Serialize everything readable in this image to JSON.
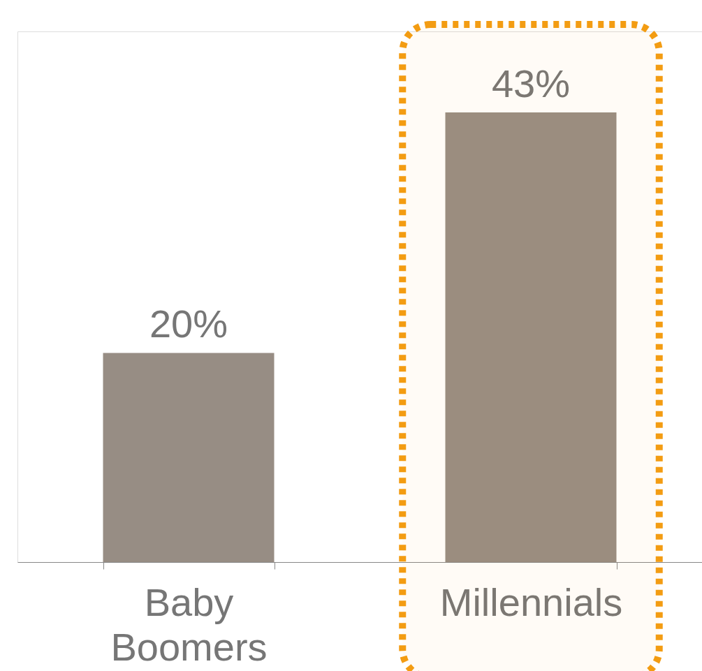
{
  "chart_data": {
    "type": "bar",
    "categories": [
      "Baby Boomers",
      "Millennials"
    ],
    "values": [
      20,
      43
    ],
    "value_labels": [
      "20%",
      "43%"
    ],
    "color": "#978d84",
    "bands": [
      {
        "axis": "x",
        "from": "Millennials",
        "to": "Millennials",
        "color": "#f39c12"
      }
    ],
    "grid": false
  }
}
